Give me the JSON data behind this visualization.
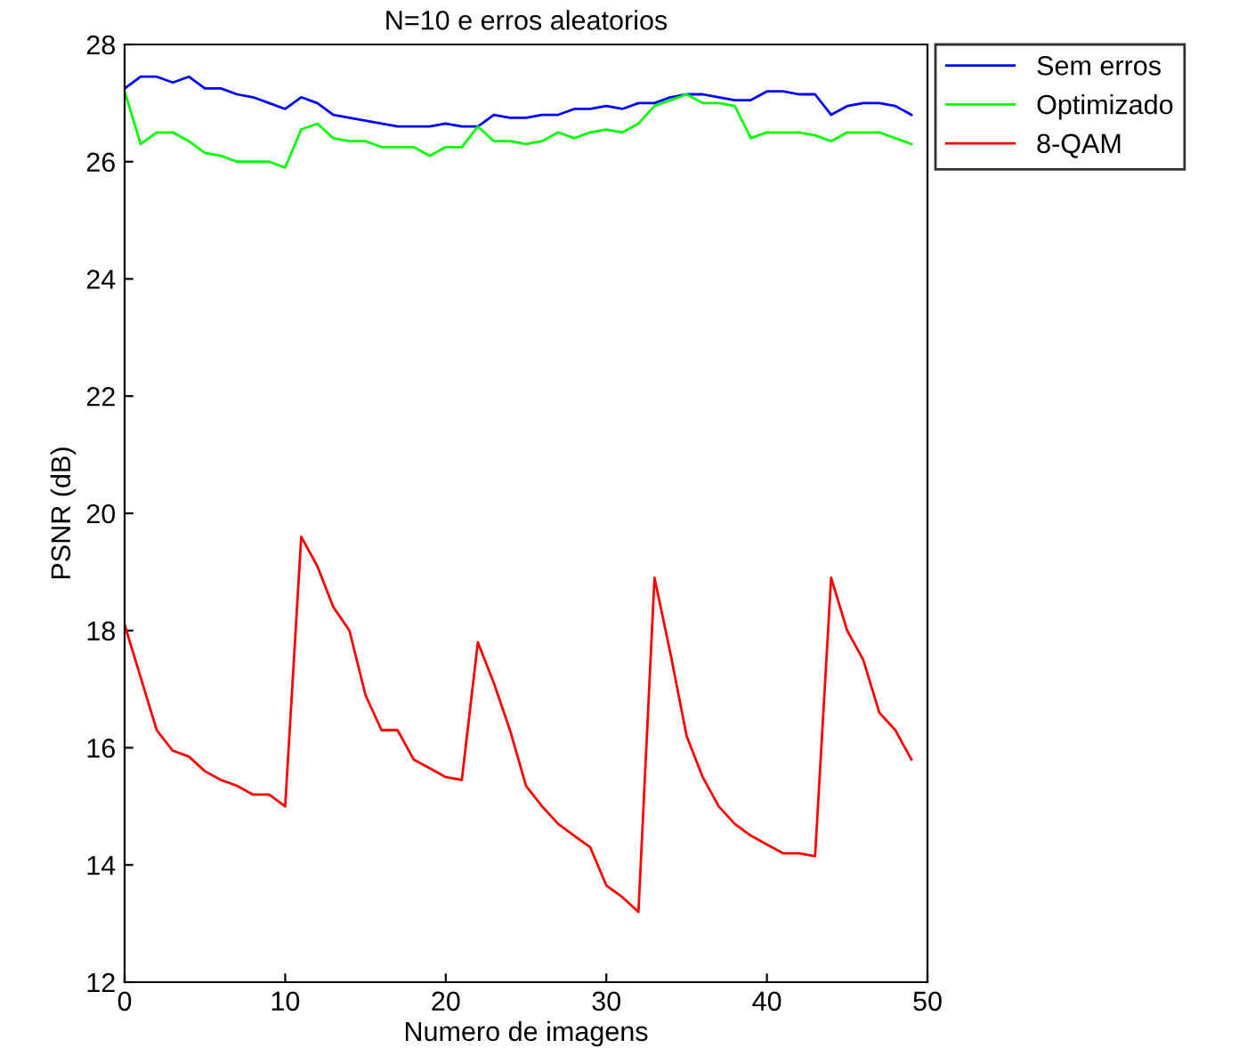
{
  "chart_data": {
    "type": "line",
    "title": "N=10 e erros aleatorios",
    "xlabel": "Numero de imagens",
    "ylabel": "PSNR (dB)",
    "x": [
      0,
      1,
      2,
      3,
      4,
      5,
      6,
      7,
      8,
      9,
      10,
      11,
      12,
      13,
      14,
      15,
      16,
      17,
      18,
      19,
      20,
      21,
      22,
      23,
      24,
      25,
      26,
      27,
      28,
      29,
      30,
      31,
      32,
      33,
      34,
      35,
      36,
      37,
      38,
      39,
      40,
      41,
      42,
      43,
      44,
      45,
      46,
      47,
      48,
      49
    ],
    "series": [
      {
        "name": "Sem erros",
        "color": "#0000ff",
        "values": [
          27.25,
          27.45,
          27.45,
          27.35,
          27.45,
          27.25,
          27.25,
          27.15,
          27.1,
          27.0,
          26.9,
          27.1,
          27.0,
          26.8,
          26.75,
          26.7,
          26.65,
          26.6,
          26.6,
          26.6,
          26.65,
          26.6,
          26.6,
          26.8,
          26.75,
          26.75,
          26.8,
          26.8,
          26.9,
          26.9,
          26.95,
          26.9,
          27.0,
          27.0,
          27.1,
          27.15,
          27.15,
          27.1,
          27.05,
          27.05,
          27.2,
          27.2,
          27.15,
          27.15,
          26.8,
          26.95,
          27.0,
          27.0,
          26.95,
          26.8
        ]
      },
      {
        "name": "Optimizado",
        "color": "#00ff00",
        "values": [
          27.2,
          26.3,
          26.5,
          26.5,
          26.35,
          26.15,
          26.1,
          26.0,
          26.0,
          26.0,
          25.9,
          26.55,
          26.65,
          26.4,
          26.35,
          26.35,
          26.25,
          26.25,
          26.25,
          26.1,
          26.25,
          26.25,
          26.6,
          26.35,
          26.35,
          26.3,
          26.35,
          26.5,
          26.4,
          26.5,
          26.55,
          26.5,
          26.65,
          26.95,
          27.05,
          27.15,
          27.0,
          27.0,
          26.95,
          26.4,
          26.5,
          26.5,
          26.5,
          26.45,
          26.35,
          26.5,
          26.5,
          26.5,
          26.4,
          26.3
        ]
      },
      {
        "name": "8-QAM",
        "color": "#ff0000",
        "values": [
          18.1,
          17.2,
          16.3,
          15.95,
          15.85,
          15.6,
          15.45,
          15.35,
          15.2,
          15.2,
          15.0,
          19.6,
          19.1,
          18.4,
          18.0,
          16.9,
          16.3,
          16.3,
          15.8,
          15.65,
          15.5,
          15.45,
          17.8,
          17.1,
          16.3,
          15.35,
          15.0,
          14.7,
          14.5,
          14.3,
          13.65,
          13.45,
          13.2,
          18.9,
          17.6,
          16.2,
          15.5,
          15.0,
          14.7,
          14.5,
          14.35,
          14.2,
          14.2,
          14.15,
          18.9,
          18.0,
          17.5,
          16.6,
          16.3,
          15.8
        ]
      }
    ],
    "xlim": [
      0,
      50
    ],
    "xticks": [
      0,
      10,
      20,
      30,
      40,
      50
    ],
    "ylim": [
      12,
      28
    ],
    "yticks": [
      12,
      14,
      16,
      18,
      20,
      22,
      24,
      26,
      28
    ],
    "grid": false,
    "legend": "top right",
    "marker": "none",
    "line_style": "solid"
  }
}
